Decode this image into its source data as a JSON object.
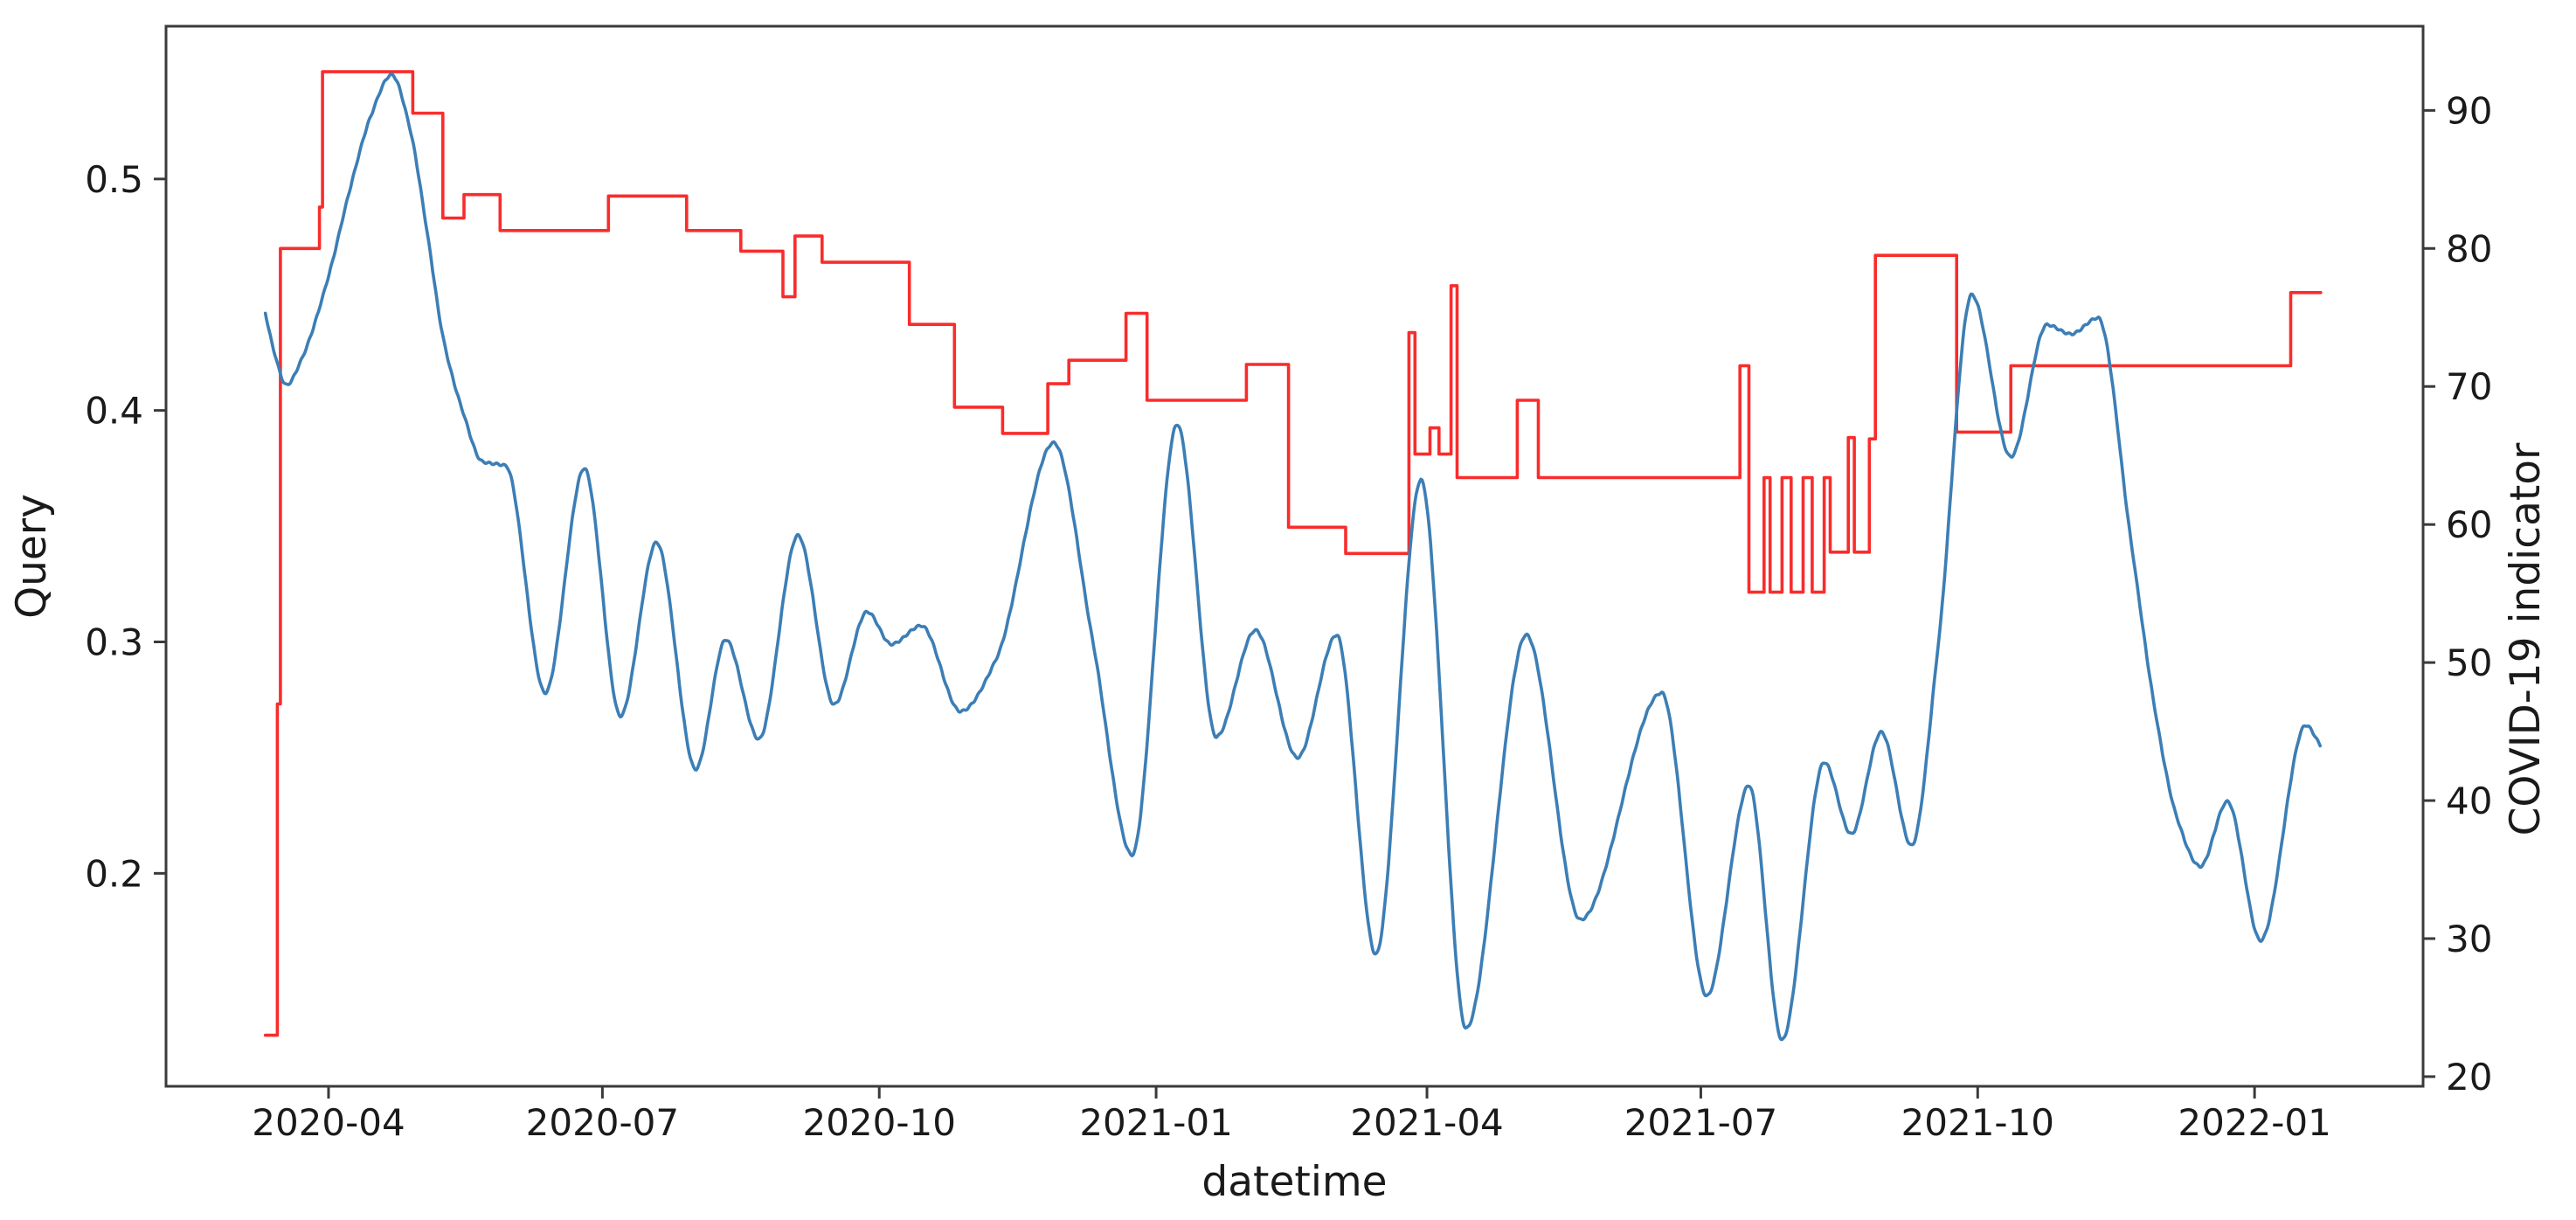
{
  "figure": {
    "xlabel": "datetime",
    "ylabel_left": "Query",
    "ylabel_right": "COVID-19 indicator",
    "background": "#ffffff",
    "spine_color": "#3a3a3a",
    "query_color": "#3c7eb5",
    "covid_color": "#f92c2c"
  },
  "chart_data": {
    "type": "line",
    "title": "",
    "xlabel": "datetime",
    "ylabel": "Query",
    "ylabel_right": "COVID-19 indicator",
    "grid": false,
    "legend": "none",
    "x_domain": [
      "2020-02-07",
      "2022-02-26"
    ],
    "y_left_domain": [
      0.108,
      0.566
    ],
    "y_right_domain": [
      19.3,
      96.1
    ],
    "x_ticks": [
      {
        "label": "2020-04",
        "date": "2020-04-01"
      },
      {
        "label": "2020-07",
        "date": "2020-07-01"
      },
      {
        "label": "2020-10",
        "date": "2020-10-01"
      },
      {
        "label": "2021-01",
        "date": "2021-01-01"
      },
      {
        "label": "2021-04",
        "date": "2021-04-01"
      },
      {
        "label": "2021-07",
        "date": "2021-07-01"
      },
      {
        "label": "2021-10",
        "date": "2021-10-01"
      },
      {
        "label": "2022-01",
        "date": "2022-01-01"
      }
    ],
    "y_left_ticks": [
      "0.2",
      "0.3",
      "0.4",
      "0.5"
    ],
    "y_right_ticks": [
      "20",
      "30",
      "40",
      "50",
      "60",
      "70",
      "80",
      "90"
    ],
    "series": [
      {
        "name": "Query",
        "axis": "left",
        "style": "smooth",
        "color": "#3c7eb5",
        "points": [
          [
            "2020-03-11",
            0.442
          ],
          [
            "2020-03-14",
            0.425
          ],
          [
            "2020-03-18",
            0.411
          ],
          [
            "2020-03-23",
            0.422
          ],
          [
            "2020-04-01",
            0.458
          ],
          [
            "2020-04-08",
            0.495
          ],
          [
            "2020-04-15",
            0.527
          ],
          [
            "2020-04-22",
            0.545
          ],
          [
            "2020-04-28",
            0.522
          ],
          [
            "2020-05-04",
            0.475
          ],
          [
            "2020-05-09",
            0.432
          ],
          [
            "2020-05-16",
            0.398
          ],
          [
            "2020-05-22",
            0.378
          ],
          [
            "2020-05-30",
            0.376
          ],
          [
            "2020-06-12",
            0.278
          ],
          [
            "2020-06-25",
            0.375
          ],
          [
            "2020-07-07",
            0.268
          ],
          [
            "2020-07-19",
            0.343
          ],
          [
            "2020-08-01",
            0.245
          ],
          [
            "2020-08-11",
            0.301
          ],
          [
            "2020-08-22",
            0.258
          ],
          [
            "2020-09-04",
            0.346
          ],
          [
            "2020-09-16",
            0.273
          ],
          [
            "2020-09-27",
            0.313
          ],
          [
            "2020-10-05",
            0.299
          ],
          [
            "2020-10-15",
            0.307
          ],
          [
            "2020-10-28",
            0.27
          ],
          [
            "2020-11-09",
            0.293
          ],
          [
            "2020-11-28",
            0.386
          ],
          [
            "2020-12-11",
            0.3
          ],
          [
            "2020-12-24",
            0.208
          ],
          [
            "2021-01-08",
            0.394
          ],
          [
            "2021-01-21",
            0.259
          ],
          [
            "2021-02-03",
            0.305
          ],
          [
            "2021-02-17",
            0.25
          ],
          [
            "2021-03-02",
            0.303
          ],
          [
            "2021-03-15",
            0.165
          ],
          [
            "2021-03-30",
            0.37
          ],
          [
            "2021-04-14",
            0.133
          ],
          [
            "2021-05-04",
            0.303
          ],
          [
            "2021-05-22",
            0.18
          ],
          [
            "2021-06-18",
            0.278
          ],
          [
            "2021-07-03",
            0.147
          ],
          [
            "2021-07-17",
            0.238
          ],
          [
            "2021-07-28",
            0.128
          ],
          [
            "2021-08-11",
            0.248
          ],
          [
            "2021-08-20",
            0.217
          ],
          [
            "2021-08-30",
            0.261
          ],
          [
            "2021-09-09",
            0.212
          ],
          [
            "2021-09-18",
            0.3
          ],
          [
            "2021-09-29",
            0.45
          ],
          [
            "2021-10-12",
            0.38
          ],
          [
            "2021-10-24",
            0.437
          ],
          [
            "2021-11-01",
            0.433
          ],
          [
            "2021-11-10",
            0.44
          ],
          [
            "2021-11-21",
            0.343
          ],
          [
            "2021-11-29",
            0.27
          ],
          [
            "2021-12-06",
            0.225
          ],
          [
            "2021-12-14",
            0.203
          ],
          [
            "2021-12-23",
            0.231
          ],
          [
            "2022-01-03",
            0.171
          ],
          [
            "2022-01-18",
            0.264
          ],
          [
            "2022-01-23",
            0.255
          ]
        ]
      },
      {
        "name": "COVID-19 indicator",
        "axis": "right",
        "style": "step",
        "color": "#f92c2c",
        "end_date": "2022-01-23",
        "points": [
          [
            "2020-03-11",
            23.0
          ],
          [
            "2020-03-15",
            47.0
          ],
          [
            "2020-03-16",
            80.0
          ],
          [
            "2020-03-29",
            83.0
          ],
          [
            "2020-03-30",
            92.8
          ],
          [
            "2020-04-29",
            89.8
          ],
          [
            "2020-05-09",
            82.2
          ],
          [
            "2020-05-16",
            83.9
          ],
          [
            "2020-05-28",
            81.3
          ],
          [
            "2020-07-03",
            83.8
          ],
          [
            "2020-07-29",
            81.3
          ],
          [
            "2020-08-16",
            79.8
          ],
          [
            "2020-08-30",
            76.5
          ],
          [
            "2020-09-03",
            80.9
          ],
          [
            "2020-09-12",
            79.0
          ],
          [
            "2020-10-11",
            74.5
          ],
          [
            "2020-10-26",
            68.5
          ],
          [
            "2020-11-11",
            66.6
          ],
          [
            "2020-11-26",
            70.2
          ],
          [
            "2020-12-03",
            71.9
          ],
          [
            "2020-12-22",
            75.3
          ],
          [
            "2020-12-29",
            69.0
          ],
          [
            "2021-01-31",
            71.6
          ],
          [
            "2021-02-14",
            59.8
          ],
          [
            "2021-03-05",
            57.9
          ],
          [
            "2021-03-26",
            73.9
          ],
          [
            "2021-03-28",
            65.1
          ],
          [
            "2021-04-02",
            67.0
          ],
          [
            "2021-04-05",
            65.1
          ],
          [
            "2021-04-09",
            77.3
          ],
          [
            "2021-04-11",
            63.4
          ],
          [
            "2021-05-01",
            69.0
          ],
          [
            "2021-05-08",
            63.4
          ],
          [
            "2021-07-14",
            71.5
          ],
          [
            "2021-07-17",
            55.1
          ],
          [
            "2021-07-22",
            63.4
          ],
          [
            "2021-07-24",
            55.1
          ],
          [
            "2021-07-28",
            63.4
          ],
          [
            "2021-07-31",
            55.1
          ],
          [
            "2021-08-04",
            63.4
          ],
          [
            "2021-08-07",
            55.1
          ],
          [
            "2021-08-11",
            63.4
          ],
          [
            "2021-08-13",
            58.0
          ],
          [
            "2021-08-19",
            66.3
          ],
          [
            "2021-08-21",
            58.0
          ],
          [
            "2021-08-26",
            66.2
          ],
          [
            "2021-08-28",
            79.5
          ],
          [
            "2021-09-24",
            66.7
          ],
          [
            "2021-10-12",
            71.5
          ],
          [
            "2022-01-13",
            76.8
          ]
        ]
      }
    ]
  }
}
